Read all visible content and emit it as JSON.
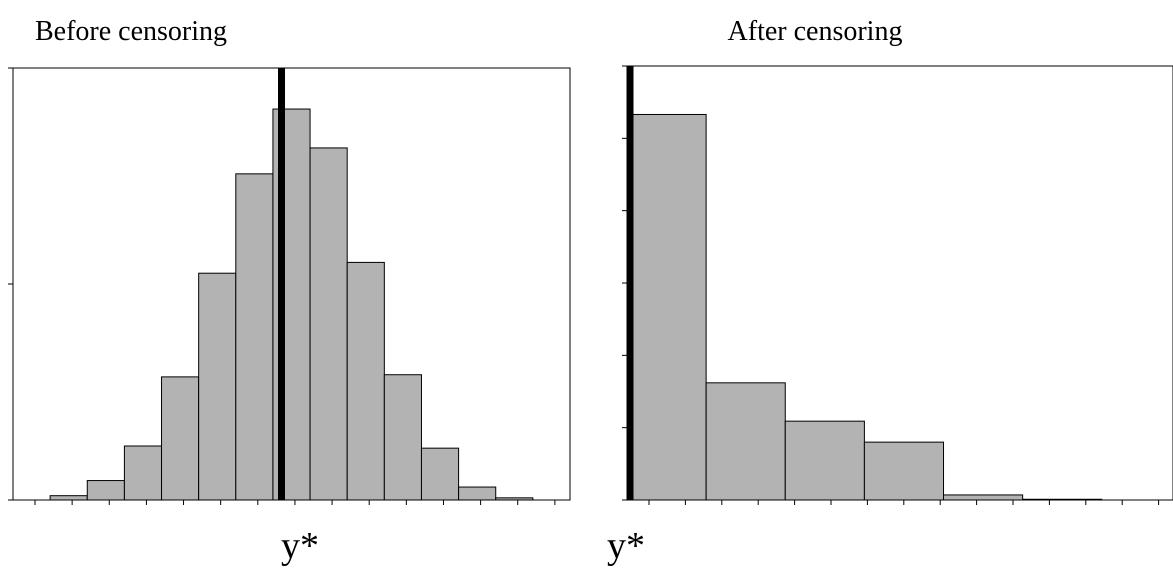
{
  "chart_data": [
    {
      "type": "histogram",
      "title": "Before censoring",
      "x_label": "y*",
      "bins": [
        1,
        2,
        3,
        4,
        5,
        6,
        7,
        8,
        9,
        10,
        11,
        12,
        13,
        14
      ],
      "values": [
        0.02,
        0.09,
        0.25,
        0.57,
        1.05,
        1.51,
        1.81,
        1.63,
        1.1,
        0.58,
        0.24,
        0.06,
        0.01
      ],
      "xlim": [
        0,
        15
      ],
      "ylim": [
        0,
        2
      ],
      "yticks": [
        0,
        1,
        2
      ],
      "threshold": 7.15,
      "color": "#b3b3b3"
    },
    {
      "type": "histogram",
      "title": "After censoring",
      "x_label": "y*",
      "bins": [
        0,
        1,
        2,
        3,
        4,
        5,
        6
      ],
      "values": [
        5.33,
        1.62,
        1.09,
        0.8,
        0.07,
        0.01
      ],
      "xlim": [
        0,
        6.9
      ],
      "ylim": [
        0,
        6
      ],
      "yticks": [
        0,
        1,
        2,
        3,
        4,
        5,
        6
      ],
      "threshold": 0,
      "color": "#b3b3b3"
    }
  ]
}
